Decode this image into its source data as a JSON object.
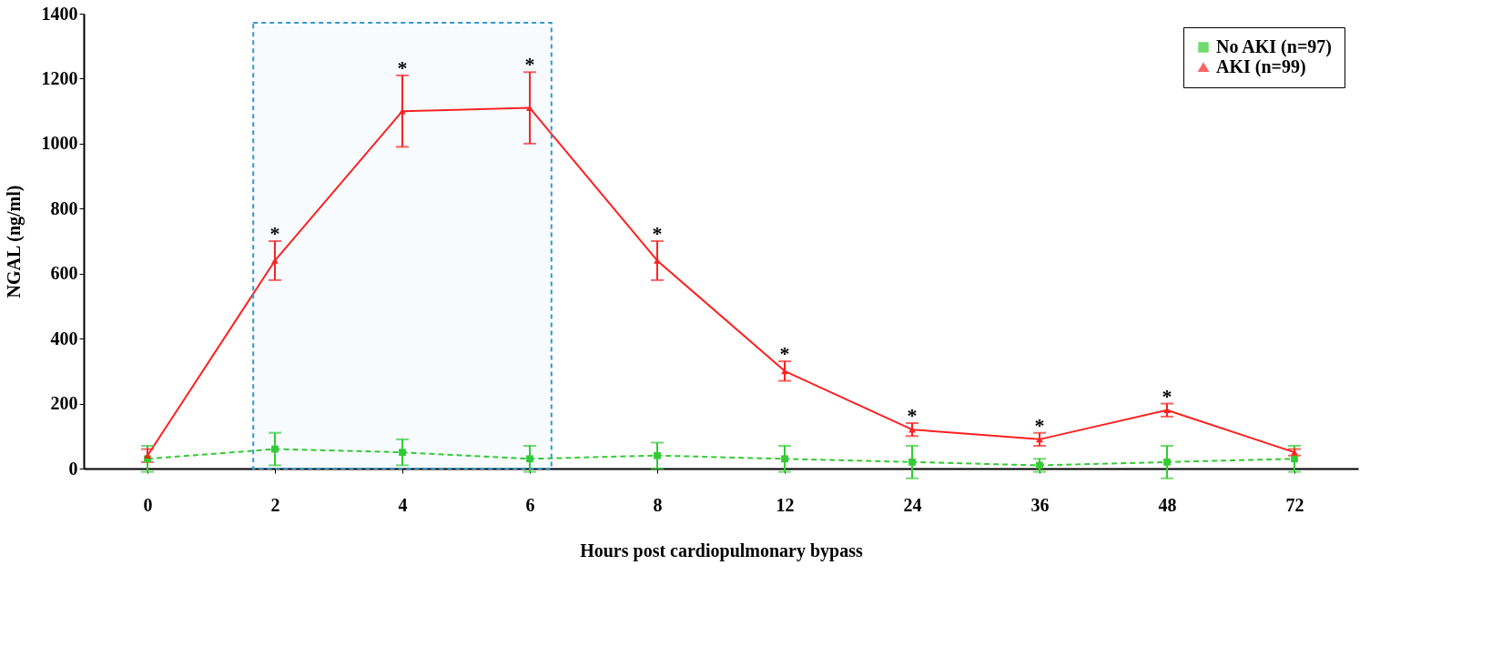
{
  "chart_data": {
    "type": "line",
    "xlabel": "Hours post cardiopulmonary bypass",
    "ylabel": "NGAL (ng/ml)",
    "categories": [
      "0",
      "2",
      "4",
      "6",
      "8",
      "12",
      "24",
      "36",
      "48",
      "72"
    ],
    "series": [
      {
        "name": "No AKI (n=97)",
        "color": "#33cc33",
        "marker": "square",
        "line_style": "dashed",
        "values": [
          30,
          60,
          50,
          30,
          40,
          30,
          20,
          10,
          20,
          30
        ],
        "errors": [
          40,
          50,
          40,
          40,
          40,
          40,
          50,
          20,
          50,
          40
        ]
      },
      {
        "name": "AKI (n=99)",
        "color": "#ff2020",
        "marker": "triangle",
        "line_style": "solid",
        "values": [
          40,
          640,
          1100,
          1110,
          640,
          300,
          120,
          90,
          180,
          50
        ],
        "errors": [
          20,
          60,
          110,
          110,
          60,
          30,
          20,
          20,
          20,
          10
        ]
      }
    ],
    "ylim": [
      0,
      1400
    ],
    "yticks": [
      0,
      200,
      400,
      600,
      800,
      1000,
      1200,
      1400
    ],
    "annotations": [
      {
        "text": "*",
        "x": "2",
        "y": 640
      },
      {
        "text": "*",
        "x": "4",
        "y": 1100
      },
      {
        "text": "*",
        "x": "6",
        "y": 1110
      },
      {
        "text": "*",
        "x": "8",
        "y": 640
      },
      {
        "text": "*",
        "x": "12",
        "y": 300
      },
      {
        "text": "*",
        "x": "24",
        "y": 120
      },
      {
        "text": "*",
        "x": "36",
        "y": 90
      },
      {
        "text": "*",
        "x": "48",
        "y": 180
      }
    ],
    "bands": [
      {
        "axis": "x",
        "from": "2",
        "to": "6",
        "color": "#3399cc"
      }
    ],
    "grid": false,
    "legend": "top right"
  }
}
